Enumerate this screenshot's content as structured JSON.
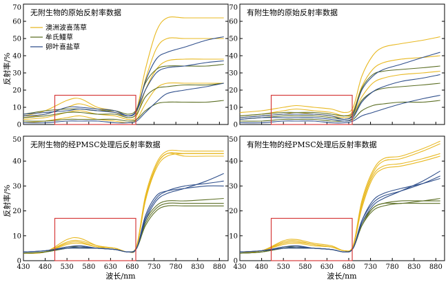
{
  "figure": {
    "ylabel": "反射率/%",
    "xlabel": "波长/nm"
  },
  "colors": {
    "yellow": "#e8b820",
    "green": "#5a6d22",
    "blue": "#2d4d8a",
    "box": "#d63a3a"
  },
  "chart_data": [
    {
      "type": "line",
      "title": "无附生物的原始反射率数据",
      "xlim": [
        430,
        900
      ],
      "ylim": [
        0,
        70
      ],
      "xticks": [
        430,
        480,
        530,
        580,
        630,
        680,
        730,
        780,
        830,
        880
      ],
      "yticks": [
        0,
        10,
        20,
        30,
        40,
        50,
        60,
        70
      ],
      "x": [
        430,
        480,
        530,
        560,
        600,
        640,
        670,
        690,
        710,
        735,
        760,
        800,
        850,
        890
      ],
      "legend": [
        {
          "name": "澳洲波喜荡草",
          "color": "yellow"
        },
        {
          "name": "牟氏鳗草",
          "color": "green"
        },
        {
          "name": "卵叶喜盐草",
          "color": "blue"
        }
      ],
      "highlight": {
        "x": [
          502,
          688
        ],
        "y": [
          0,
          17
        ]
      },
      "series": [
        {
          "group": "yellow",
          "values": [
            5,
            8,
            14,
            15,
            10,
            8,
            5,
            9,
            32,
            54,
            62,
            62,
            62,
            62
          ]
        },
        {
          "group": "yellow",
          "values": [
            4,
            6,
            10,
            12,
            9,
            7,
            4,
            7,
            26,
            44,
            50,
            50,
            50,
            50
          ]
        },
        {
          "group": "yellow",
          "values": [
            3,
            4,
            7,
            8,
            6,
            5,
            3,
            5,
            20,
            32,
            37,
            38,
            38,
            38
          ]
        },
        {
          "group": "yellow",
          "values": [
            1,
            2,
            4,
            5,
            3,
            2,
            1,
            3,
            12,
            21,
            24,
            24,
            24,
            24
          ]
        },
        {
          "group": "green",
          "values": [
            6,
            8,
            9,
            9,
            8,
            8,
            6,
            9,
            24,
            32,
            34,
            34,
            34,
            35
          ]
        },
        {
          "group": "green",
          "values": [
            4,
            5,
            7,
            7,
            6,
            6,
            4,
            6,
            16,
            21,
            22,
            23,
            23,
            24
          ]
        },
        {
          "group": "green",
          "values": [
            2,
            2,
            3,
            3,
            3,
            3,
            2,
            3,
            8,
            12,
            13,
            13,
            13,
            14
          ]
        },
        {
          "group": "blue",
          "values": [
            5,
            6,
            10,
            10,
            9,
            8,
            5,
            8,
            25,
            38,
            42,
            45,
            49,
            51
          ]
        },
        {
          "group": "blue",
          "values": [
            6,
            7,
            8,
            9,
            8,
            7,
            5,
            8,
            20,
            30,
            33,
            34,
            36,
            37
          ]
        },
        {
          "group": "blue",
          "values": [
            1,
            1,
            2,
            2,
            2,
            1,
            1,
            2,
            7,
            13,
            18,
            20,
            22,
            24
          ]
        }
      ]
    },
    {
      "type": "line",
      "title": "有附生物的原始反射率数据",
      "xlim": [
        430,
        900
      ],
      "ylim": [
        0,
        70
      ],
      "xticks": [
        430,
        480,
        530,
        580,
        630,
        680,
        730,
        780,
        830,
        880
      ],
      "yticks": [
        0,
        10,
        20,
        30,
        40,
        50,
        60,
        70
      ],
      "x": [
        430,
        480,
        530,
        560,
        600,
        640,
        670,
        690,
        710,
        735,
        760,
        800,
        850,
        890
      ],
      "highlight": {
        "x": [
          502,
          688
        ],
        "y": [
          0,
          17
        ]
      },
      "series": [
        {
          "group": "yellow",
          "values": [
            7,
            8,
            10,
            11,
            10,
            9,
            7,
            10,
            28,
            40,
            45,
            47,
            49,
            51
          ]
        },
        {
          "group": "yellow",
          "values": [
            5,
            6,
            8,
            9,
            8,
            7,
            5,
            8,
            22,
            32,
            36,
            38,
            39,
            40
          ]
        },
        {
          "group": "yellow",
          "values": [
            4,
            5,
            6,
            7,
            6,
            5,
            4,
            6,
            16,
            24,
            27,
            29,
            30,
            31
          ]
        },
        {
          "group": "green",
          "values": [
            5,
            6,
            7,
            7,
            7,
            6,
            5,
            7,
            21,
            29,
            31,
            32,
            33,
            34
          ]
        },
        {
          "group": "green",
          "values": [
            3,
            4,
            5,
            5,
            5,
            4,
            3,
            5,
            14,
            19,
            21,
            22,
            23,
            24
          ]
        },
        {
          "group": "green",
          "values": [
            2,
            2,
            3,
            3,
            3,
            2,
            2,
            3,
            8,
            11,
            12,
            13,
            13,
            14
          ]
        },
        {
          "group": "blue",
          "values": [
            4,
            5,
            6,
            6,
            6,
            5,
            3,
            6,
            20,
            28,
            32,
            35,
            39,
            42
          ]
        },
        {
          "group": "blue",
          "values": [
            3,
            4,
            4,
            4,
            4,
            3,
            2,
            4,
            13,
            19,
            22,
            25,
            27,
            29
          ]
        },
        {
          "group": "blue",
          "values": [
            1,
            1,
            2,
            2,
            2,
            1,
            1,
            2,
            5,
            7,
            9,
            12,
            15,
            17
          ]
        }
      ]
    },
    {
      "type": "line",
      "title": "无附生物的经PMSC处理后反射率数据",
      "xlim": [
        430,
        900
      ],
      "ylim": [
        0,
        50
      ],
      "xticks": [
        430,
        480,
        530,
        580,
        630,
        680,
        730,
        780,
        830,
        880
      ],
      "yticks": [
        0,
        10,
        20,
        30,
        40,
        50
      ],
      "x": [
        430,
        480,
        530,
        560,
        600,
        640,
        670,
        690,
        710,
        735,
        760,
        800,
        850,
        890
      ],
      "highlight": {
        "x": [
          502,
          688
        ],
        "y": [
          0,
          17
        ]
      },
      "series": [
        {
          "group": "yellow",
          "values": [
            3,
            3.5,
            8.5,
            9,
            6,
            5,
            3.5,
            6,
            25,
            38,
            43,
            43,
            43,
            43
          ]
        },
        {
          "group": "yellow",
          "values": [
            3,
            3.5,
            7.5,
            8,
            6,
            5,
            3.5,
            6,
            26,
            39,
            44,
            44,
            44,
            44
          ]
        },
        {
          "group": "yellow",
          "values": [
            3,
            3.5,
            7,
            7.5,
            5.5,
            5,
            3.5,
            5.5,
            24,
            37,
            42,
            43,
            43,
            43
          ]
        },
        {
          "group": "yellow",
          "values": [
            3,
            3.5,
            6.5,
            7,
            5.5,
            5,
            3.5,
            5.5,
            24,
            38,
            43,
            42,
            42,
            42
          ]
        },
        {
          "group": "green",
          "values": [
            3,
            3.5,
            5,
            5.5,
            5,
            4.5,
            3.5,
            5,
            15,
            21,
            23,
            23,
            23,
            23
          ]
        },
        {
          "group": "green",
          "values": [
            3,
            3.5,
            5,
            5,
            5,
            4.5,
            3.5,
            5,
            14,
            20,
            22,
            22,
            22,
            22
          ]
        },
        {
          "group": "green",
          "values": [
            3,
            3.5,
            5.5,
            5.5,
            5,
            4.5,
            3.5,
            5,
            16,
            22,
            24,
            24,
            24.5,
            25
          ]
        },
        {
          "group": "blue",
          "values": [
            3.5,
            4,
            5.5,
            6,
            5,
            4.5,
            3.5,
            5,
            16,
            24,
            27,
            29,
            32,
            35
          ]
        },
        {
          "group": "blue",
          "values": [
            3.5,
            4,
            5,
            5.5,
            5,
            4.5,
            3.5,
            5,
            17,
            25,
            28,
            30,
            31,
            32
          ]
        },
        {
          "group": "blue",
          "values": [
            3.5,
            4,
            5,
            5,
            5,
            4.5,
            3.5,
            5,
            18,
            26,
            28,
            29,
            30,
            30
          ]
        }
      ]
    },
    {
      "type": "line",
      "title": "有附生物的经PMSC处理后反射率数据",
      "xlim": [
        430,
        900
      ],
      "ylim": [
        0,
        50
      ],
      "xticks": [
        430,
        480,
        530,
        580,
        630,
        680,
        730,
        780,
        830,
        880
      ],
      "yticks": [
        0,
        10,
        20,
        30,
        40,
        50
      ],
      "x": [
        430,
        480,
        530,
        560,
        600,
        640,
        670,
        690,
        710,
        735,
        760,
        800,
        850,
        890
      ],
      "highlight": {
        "x": [
          502,
          688
        ],
        "y": [
          0,
          17
        ]
      },
      "series": [
        {
          "group": "yellow",
          "values": [
            3.5,
            4,
            8,
            8.5,
            7,
            6,
            4,
            6,
            24,
            36,
            41,
            42,
            45,
            48
          ]
        },
        {
          "group": "yellow",
          "values": [
            3.5,
            4,
            7.5,
            8,
            6.5,
            5.5,
            4,
            6,
            23,
            35,
            40,
            41,
            44,
            47
          ]
        },
        {
          "group": "yellow",
          "values": [
            3.5,
            4,
            7,
            7.5,
            6.5,
            5.5,
            4,
            6,
            22,
            34,
            38,
            39,
            41,
            43
          ]
        },
        {
          "group": "yellow",
          "values": [
            3.5,
            4,
            6.5,
            7,
            6,
            5.5,
            4,
            5.5,
            21,
            33,
            37,
            38,
            40,
            42
          ]
        },
        {
          "group": "green",
          "values": [
            3,
            3.5,
            5,
            5.5,
            5,
            4.5,
            3.5,
            5,
            14,
            20,
            22,
            23,
            23,
            23
          ]
        },
        {
          "group": "green",
          "values": [
            3,
            3.5,
            5,
            5,
            5,
            4.5,
            3.5,
            5,
            14,
            21,
            23,
            24,
            24,
            24
          ]
        },
        {
          "group": "green",
          "values": [
            3,
            3.5,
            5.5,
            5.5,
            5,
            4.5,
            3.5,
            5,
            15,
            21,
            23,
            23,
            24,
            25
          ]
        },
        {
          "group": "blue",
          "values": [
            3.5,
            4,
            5.5,
            6,
            5,
            4.5,
            3.5,
            5,
            15,
            22,
            25,
            28,
            32,
            36
          ]
        },
        {
          "group": "blue",
          "values": [
            3.5,
            4,
            5,
            5.5,
            5,
            4.5,
            3.5,
            5,
            16,
            23,
            26,
            28,
            31,
            34
          ]
        },
        {
          "group": "blue",
          "values": [
            3.5,
            4,
            5,
            5,
            5,
            4.5,
            3.5,
            5,
            16,
            24,
            27,
            29,
            31,
            33
          ]
        }
      ]
    }
  ]
}
